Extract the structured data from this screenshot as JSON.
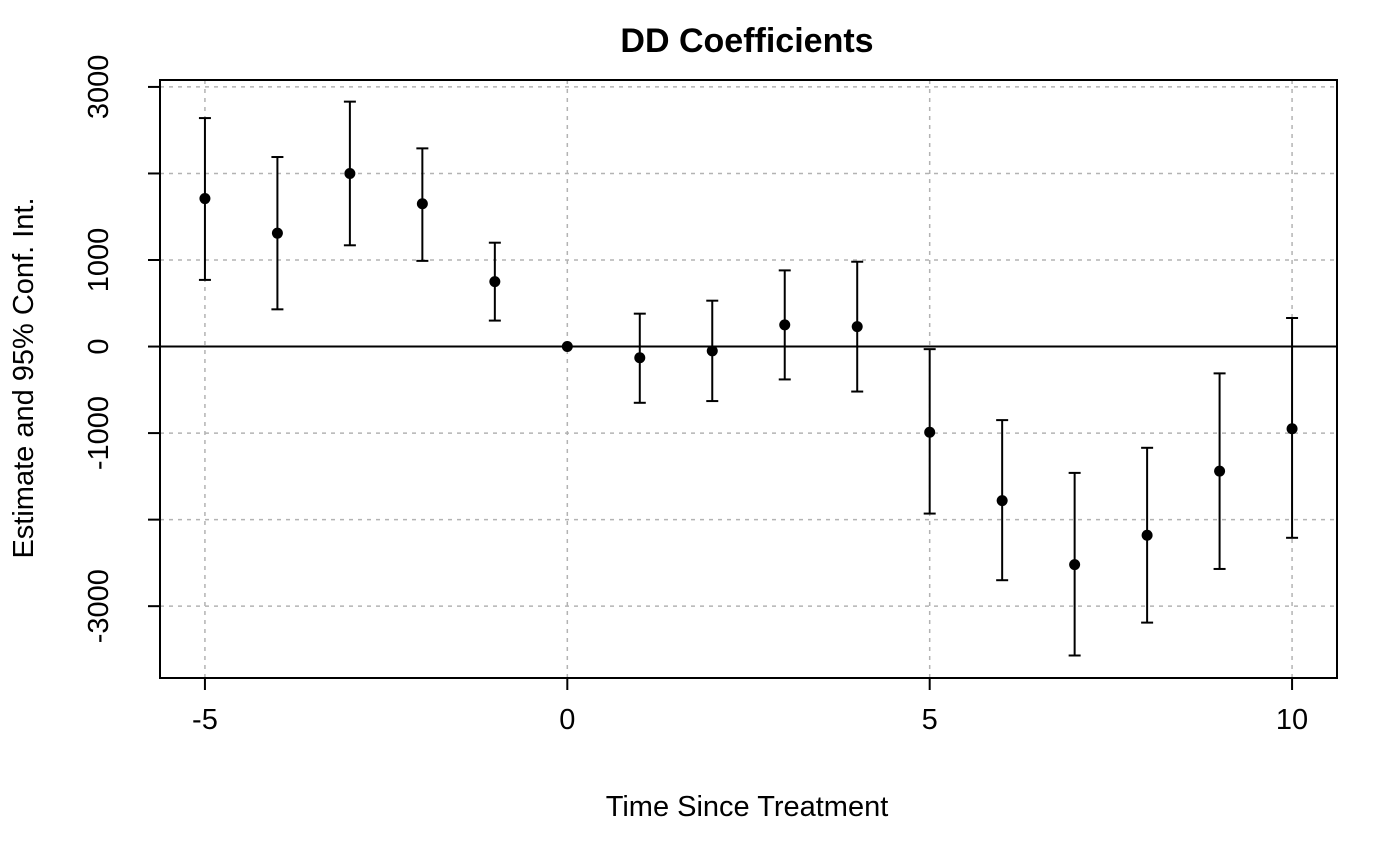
{
  "chart_data": {
    "type": "scatter",
    "title": "DD Coefficients",
    "xlabel": "Time Since Treatment",
    "ylabel": "Estimate and 95% Conf. Int.",
    "xlim": [
      -5.62,
      10.62
    ],
    "ylim": [
      -3830,
      3080
    ],
    "x_ticks": [
      -5,
      0,
      5,
      10
    ],
    "x_tick_labels": [
      "-5",
      "0",
      "5",
      "10"
    ],
    "y_ticks": [
      -3000,
      -2000,
      -1000,
      0,
      1000,
      2000,
      3000
    ],
    "y_tick_labels": [
      "-3000",
      "",
      "-1000",
      "0",
      "1000",
      "",
      "3000"
    ],
    "grid": true,
    "reference_line": 0,
    "series": [
      {
        "points": [
          {
            "x": -5,
            "estimate": 1710,
            "lower": 770,
            "upper": 2640
          },
          {
            "x": -4,
            "estimate": 1310,
            "lower": 430,
            "upper": 2190
          },
          {
            "x": -3,
            "estimate": 2000,
            "lower": 1170,
            "upper": 2830
          },
          {
            "x": -2,
            "estimate": 1650,
            "lower": 990,
            "upper": 2290
          },
          {
            "x": -1,
            "estimate": 750,
            "lower": 300,
            "upper": 1200
          },
          {
            "x": 0,
            "estimate": 0,
            "lower": 0,
            "upper": 0
          },
          {
            "x": 1,
            "estimate": -130,
            "lower": -650,
            "upper": 380
          },
          {
            "x": 2,
            "estimate": -50,
            "lower": -630,
            "upper": 530
          },
          {
            "x": 3,
            "estimate": 250,
            "lower": -380,
            "upper": 880
          },
          {
            "x": 4,
            "estimate": 230,
            "lower": -520,
            "upper": 980
          },
          {
            "x": 5,
            "estimate": -990,
            "lower": -1930,
            "upper": -30
          },
          {
            "x": 6,
            "estimate": -1780,
            "lower": -2700,
            "upper": -850
          },
          {
            "x": 7,
            "estimate": -2520,
            "lower": -3570,
            "upper": -1460
          },
          {
            "x": 8,
            "estimate": -2180,
            "lower": -3190,
            "upper": -1170
          },
          {
            "x": 9,
            "estimate": -1440,
            "lower": -2570,
            "upper": -310
          },
          {
            "x": 10,
            "estimate": -950,
            "lower": -2210,
            "upper": 330
          }
        ]
      }
    ]
  }
}
